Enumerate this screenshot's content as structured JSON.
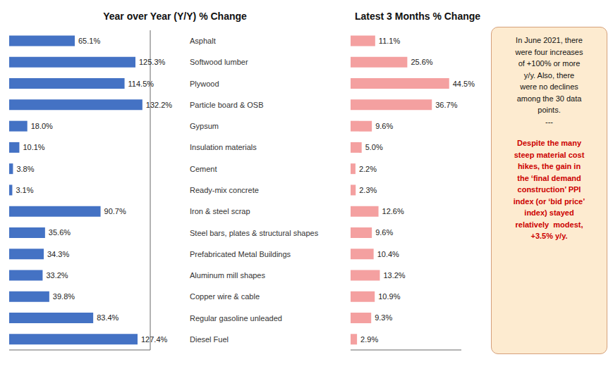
{
  "chart_data": [
    {
      "type": "bar",
      "orientation": "horizontal",
      "title": "Year over Year (Y/Y) % Change",
      "categories": [
        "Asphalt",
        "Softwood lumber",
        "Plywood",
        "Particle board & OSB",
        "Gypsum",
        "Insulation materials",
        "Cement",
        "Ready-mix concrete",
        "Iron & steel scrap",
        "Steel bars, plates & structural shapes",
        "Prefabricated Metal Buildings",
        "Aluminum mill shapes",
        "Copper wire & cable",
        "Regular gasoline unleaded",
        "Diesel Fuel"
      ],
      "values": [
        65.1,
        125.3,
        114.5,
        132.2,
        18.0,
        10.1,
        3.8,
        3.1,
        90.7,
        35.6,
        34.3,
        33.2,
        39.8,
        83.4,
        127.4
      ],
      "value_labels": [
        "65.1%",
        "125.3%",
        "114.5%",
        "132.2%",
        "18.0%",
        "10.1%",
        "3.8%",
        "3.1%",
        "90.7%",
        "35.6%",
        "34.3%",
        "33.2%",
        "39.8%",
        "83.4%",
        "127.4%"
      ],
      "color": "#4472C4",
      "xlim": [
        0,
        140
      ],
      "data_labels": true,
      "tick_labels": "y"
    },
    {
      "type": "bar",
      "orientation": "horizontal",
      "title": "Latest 3 Months % Change",
      "values": [
        11.1,
        25.6,
        44.5,
        36.7,
        9.6,
        5.0,
        2.2,
        2.3,
        12.6,
        9.6,
        10.4,
        13.2,
        10.9,
        9.3,
        2.9
      ],
      "value_labels": [
        "11.1%",
        "25.6%",
        "44.5%",
        "36.7%",
        "9.6%",
        "5.0%",
        "2.2%",
        "2.3%",
        "12.6%",
        "9.6%",
        "10.4%",
        "13.2%",
        "10.9%",
        "9.3%",
        "2.9%"
      ],
      "color": "#F4A0A0",
      "xlim": [
        0,
        50
      ],
      "data_labels": true,
      "tick_labels": false,
      "annotations": [
        {
          "text": "In June 2021, there\nwere four increases\nof +100% or more\ny/y. Also, there\nwere no declines\namong the 30 data\npoints.\n---",
          "color": "#111111"
        },
        {
          "text": "Despite the many\nsteep material cost\nhikes, the gain in\nthe ‘final demand\nconstruction’ PPI\nindex (or ‘bid price’\nindex) stayed\nrelatively  modest,\n+3.5% y/y.",
          "color": "#CC0000"
        }
      ]
    }
  ]
}
